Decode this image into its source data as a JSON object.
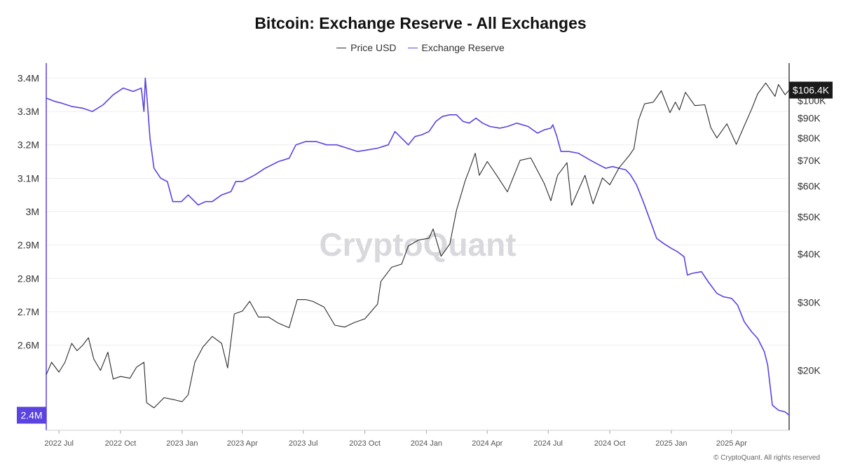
{
  "chart_data": {
    "type": "line",
    "title": "Bitcoin: Exchange Reserve - All Exchanges",
    "legend": {
      "placement": "top-center",
      "entries": [
        "Price USD",
        "Exchange Reserve"
      ]
    },
    "colors": {
      "price": "#2b2b2b",
      "reserve": "#5b43e0",
      "grid": "#eeeeee",
      "axis": "#444444"
    },
    "x_axis": {
      "range": [
        "2022-06-12",
        "2025-06-26"
      ],
      "ticks": [
        {
          "date": "2022-07-01",
          "label": "2022 Jul"
        },
        {
          "date": "2022-10-01",
          "label": "2022 Oct"
        },
        {
          "date": "2023-01-01",
          "label": "2023 Jan"
        },
        {
          "date": "2023-04-01",
          "label": "2023 Apr"
        },
        {
          "date": "2023-07-01",
          "label": "2023 Jul"
        },
        {
          "date": "2023-10-01",
          "label": "2023 Oct"
        },
        {
          "date": "2024-01-01",
          "label": "2024 Jan"
        },
        {
          "date": "2024-04-01",
          "label": "2024 Apr"
        },
        {
          "date": "2024-07-01",
          "label": "2024 Jul"
        },
        {
          "date": "2024-10-01",
          "label": "2024 Oct"
        },
        {
          "date": "2025-01-01",
          "label": "2025 Jan"
        },
        {
          "date": "2025-04-01",
          "label": "2025 Apr"
        }
      ]
    },
    "y_left": {
      "name": "Exchange Reserve",
      "range": [
        2.345,
        3.445
      ],
      "ticks": [
        {
          "value": 3.4,
          "label": "3.4M"
        },
        {
          "value": 3.3,
          "label": "3.3M"
        },
        {
          "value": 3.2,
          "label": "3.2M"
        },
        {
          "value": 3.1,
          "label": "3.1M"
        },
        {
          "value": 3.0,
          "label": "3M"
        },
        {
          "value": 2.9,
          "label": "2.9M"
        },
        {
          "value": 2.8,
          "label": "2.8M"
        },
        {
          "value": 2.7,
          "label": "2.7M"
        },
        {
          "value": 2.6,
          "label": "2.6M"
        }
      ],
      "current_badge": "2.4M"
    },
    "y_right": {
      "name": "Price USD",
      "scale": "log",
      "range": [
        14000,
        125000
      ],
      "ticks": [
        {
          "value": 20000,
          "label": "$20K"
        },
        {
          "value": 30000,
          "label": "$30K"
        },
        {
          "value": 40000,
          "label": "$40K"
        },
        {
          "value": 50000,
          "label": "$50K"
        },
        {
          "value": 60000,
          "label": "$60K"
        },
        {
          "value": 70000,
          "label": "$70K"
        },
        {
          "value": 80000,
          "label": "$80K"
        },
        {
          "value": 90000,
          "label": "$90K"
        },
        {
          "value": 100000,
          "label": "$100K"
        }
      ],
      "current_badge": "$106.4K"
    },
    "grid": true,
    "watermark": "CryptoQuant",
    "copyright": "© CryptoQuant. All rights reserved",
    "series": [
      {
        "name": "Exchange Reserve",
        "unit": "M BTC",
        "points": [
          [
            "2022-06-12",
            3.34
          ],
          [
            "2022-06-25",
            3.33
          ],
          [
            "2022-07-05",
            3.325
          ],
          [
            "2022-07-20",
            3.315
          ],
          [
            "2022-08-05",
            3.31
          ],
          [
            "2022-08-20",
            3.3
          ],
          [
            "2022-09-05",
            3.32
          ],
          [
            "2022-09-20",
            3.35
          ],
          [
            "2022-10-05",
            3.37
          ],
          [
            "2022-10-20",
            3.36
          ],
          [
            "2022-11-01",
            3.37
          ],
          [
            "2022-11-05",
            3.3
          ],
          [
            "2022-11-07",
            3.4
          ],
          [
            "2022-11-10",
            3.33
          ],
          [
            "2022-11-14",
            3.22
          ],
          [
            "2022-11-20",
            3.13
          ],
          [
            "2022-11-30",
            3.1
          ],
          [
            "2022-12-10",
            3.09
          ],
          [
            "2022-12-18",
            3.03
          ],
          [
            "2022-12-31",
            3.03
          ],
          [
            "2023-01-10",
            3.05
          ],
          [
            "2023-01-25",
            3.02
          ],
          [
            "2023-02-05",
            3.03
          ],
          [
            "2023-02-15",
            3.03
          ],
          [
            "2023-03-01",
            3.05
          ],
          [
            "2023-03-15",
            3.06
          ],
          [
            "2023-03-22",
            3.09
          ],
          [
            "2023-04-01",
            3.09
          ],
          [
            "2023-04-20",
            3.11
          ],
          [
            "2023-05-05",
            3.13
          ],
          [
            "2023-05-25",
            3.15
          ],
          [
            "2023-06-10",
            3.16
          ],
          [
            "2023-06-20",
            3.2
          ],
          [
            "2023-07-05",
            3.21
          ],
          [
            "2023-07-20",
            3.21
          ],
          [
            "2023-08-05",
            3.2
          ],
          [
            "2023-08-20",
            3.2
          ],
          [
            "2023-09-05",
            3.19
          ],
          [
            "2023-09-20",
            3.18
          ],
          [
            "2023-10-05",
            3.185
          ],
          [
            "2023-10-20",
            3.19
          ],
          [
            "2023-11-05",
            3.2
          ],
          [
            "2023-11-15",
            3.24
          ],
          [
            "2023-11-25",
            3.22
          ],
          [
            "2023-12-05",
            3.2
          ],
          [
            "2023-12-15",
            3.225
          ],
          [
            "2023-12-25",
            3.23
          ],
          [
            "2024-01-05",
            3.24
          ],
          [
            "2024-01-15",
            3.27
          ],
          [
            "2024-01-25",
            3.285
          ],
          [
            "2024-02-05",
            3.29
          ],
          [
            "2024-02-15",
            3.29
          ],
          [
            "2024-02-25",
            3.27
          ],
          [
            "2024-03-05",
            3.265
          ],
          [
            "2024-03-15",
            3.28
          ],
          [
            "2024-03-25",
            3.265
          ],
          [
            "2024-04-05",
            3.255
          ],
          [
            "2024-04-20",
            3.25
          ],
          [
            "2024-05-01",
            3.255
          ],
          [
            "2024-05-15",
            3.265
          ],
          [
            "2024-06-01",
            3.255
          ],
          [
            "2024-06-15",
            3.235
          ],
          [
            "2024-06-25",
            3.245
          ],
          [
            "2024-07-05",
            3.25
          ],
          [
            "2024-07-08",
            3.26
          ],
          [
            "2024-07-14",
            3.225
          ],
          [
            "2024-07-20",
            3.18
          ],
          [
            "2024-08-01",
            3.18
          ],
          [
            "2024-08-15",
            3.175
          ],
          [
            "2024-09-01",
            3.155
          ],
          [
            "2024-09-15",
            3.14
          ],
          [
            "2024-09-25",
            3.13
          ],
          [
            "2024-10-05",
            3.135
          ],
          [
            "2024-10-15",
            3.13
          ],
          [
            "2024-10-25",
            3.125
          ],
          [
            "2024-11-01",
            3.11
          ],
          [
            "2024-11-10",
            3.08
          ],
          [
            "2024-11-20",
            3.03
          ],
          [
            "2024-12-01",
            2.97
          ],
          [
            "2024-12-10",
            2.92
          ],
          [
            "2024-12-20",
            2.905
          ],
          [
            "2025-01-01",
            2.89
          ],
          [
            "2025-01-10",
            2.88
          ],
          [
            "2025-01-20",
            2.865
          ],
          [
            "2025-01-25",
            2.81
          ],
          [
            "2025-02-01",
            2.815
          ],
          [
            "2025-02-15",
            2.82
          ],
          [
            "2025-02-25",
            2.79
          ],
          [
            "2025-03-10",
            2.755
          ],
          [
            "2025-03-20",
            2.745
          ],
          [
            "2025-04-01",
            2.74
          ],
          [
            "2025-04-10",
            2.72
          ],
          [
            "2025-04-20",
            2.67
          ],
          [
            "2025-05-01",
            2.64
          ],
          [
            "2025-05-10",
            2.62
          ],
          [
            "2025-05-20",
            2.58
          ],
          [
            "2025-05-25",
            2.54
          ],
          [
            "2025-06-01",
            2.42
          ],
          [
            "2025-06-10",
            2.405
          ],
          [
            "2025-06-20",
            2.4
          ],
          [
            "2025-06-26",
            2.39
          ]
        ]
      },
      {
        "name": "Price USD",
        "unit": "USD",
        "points": [
          [
            "2022-06-12",
            19500
          ],
          [
            "2022-06-20",
            21000
          ],
          [
            "2022-07-01",
            19800
          ],
          [
            "2022-07-10",
            21000
          ],
          [
            "2022-07-20",
            23500
          ],
          [
            "2022-07-28",
            22500
          ],
          [
            "2022-08-05",
            23200
          ],
          [
            "2022-08-14",
            24300
          ],
          [
            "2022-08-22",
            21400
          ],
          [
            "2022-09-01",
            20000
          ],
          [
            "2022-09-12",
            22300
          ],
          [
            "2022-09-20",
            19000
          ],
          [
            "2022-10-01",
            19300
          ],
          [
            "2022-10-15",
            19100
          ],
          [
            "2022-10-25",
            20400
          ],
          [
            "2022-11-05",
            21000
          ],
          [
            "2022-11-09",
            16500
          ],
          [
            "2022-11-20",
            16000
          ],
          [
            "2022-12-05",
            17000
          ],
          [
            "2022-12-20",
            16800
          ],
          [
            "2023-01-01",
            16600
          ],
          [
            "2023-01-10",
            17300
          ],
          [
            "2023-01-20",
            21000
          ],
          [
            "2023-02-01",
            23000
          ],
          [
            "2023-02-15",
            24500
          ],
          [
            "2023-03-01",
            23500
          ],
          [
            "2023-03-10",
            20300
          ],
          [
            "2023-03-20",
            28000
          ],
          [
            "2023-04-01",
            28500
          ],
          [
            "2023-04-12",
            30200
          ],
          [
            "2023-04-25",
            27500
          ],
          [
            "2023-05-10",
            27500
          ],
          [
            "2023-05-25",
            26500
          ],
          [
            "2023-06-10",
            25800
          ],
          [
            "2023-06-22",
            30500
          ],
          [
            "2023-07-05",
            30500
          ],
          [
            "2023-07-15",
            30200
          ],
          [
            "2023-08-01",
            29200
          ],
          [
            "2023-08-17",
            26200
          ],
          [
            "2023-09-01",
            25900
          ],
          [
            "2023-09-15",
            26600
          ],
          [
            "2023-10-01",
            27200
          ],
          [
            "2023-10-20",
            29700
          ],
          [
            "2023-10-25",
            34000
          ],
          [
            "2023-11-10",
            37000
          ],
          [
            "2023-11-25",
            37700
          ],
          [
            "2023-12-05",
            42000
          ],
          [
            "2023-12-20",
            43500
          ],
          [
            "2024-01-05",
            44000
          ],
          [
            "2024-01-11",
            46500
          ],
          [
            "2024-01-23",
            39500
          ],
          [
            "2024-02-05",
            42500
          ],
          [
            "2024-02-15",
            52000
          ],
          [
            "2024-02-28",
            62000
          ],
          [
            "2024-03-05",
            66000
          ],
          [
            "2024-03-14",
            73000
          ],
          [
            "2024-03-20",
            64000
          ],
          [
            "2024-04-01",
            69500
          ],
          [
            "2024-04-15",
            64000
          ],
          [
            "2024-05-01",
            58000
          ],
          [
            "2024-05-20",
            70000
          ],
          [
            "2024-06-05",
            71000
          ],
          [
            "2024-06-25",
            61000
          ],
          [
            "2024-07-05",
            55000
          ],
          [
            "2024-07-15",
            64000
          ],
          [
            "2024-07-29",
            69000
          ],
          [
            "2024-08-05",
            53500
          ],
          [
            "2024-08-25",
            64000
          ],
          [
            "2024-09-06",
            54000
          ],
          [
            "2024-09-20",
            63000
          ],
          [
            "2024-10-01",
            60500
          ],
          [
            "2024-10-15",
            67000
          ],
          [
            "2024-10-30",
            72000
          ],
          [
            "2024-11-06",
            75000
          ],
          [
            "2024-11-13",
            89000
          ],
          [
            "2024-11-22",
            98000
          ],
          [
            "2024-12-05",
            99000
          ],
          [
            "2024-12-17",
            106000
          ],
          [
            "2024-12-30",
            93000
          ],
          [
            "2025-01-07",
            99000
          ],
          [
            "2025-01-13",
            94500
          ],
          [
            "2025-01-22",
            105000
          ],
          [
            "2025-02-05",
            97000
          ],
          [
            "2025-02-20",
            97500
          ],
          [
            "2025-03-01",
            85000
          ],
          [
            "2025-03-10",
            80000
          ],
          [
            "2025-03-25",
            87000
          ],
          [
            "2025-04-08",
            77000
          ],
          [
            "2025-04-20",
            86000
          ],
          [
            "2025-05-01",
            95000
          ],
          [
            "2025-05-10",
            104000
          ],
          [
            "2025-05-22",
            111000
          ],
          [
            "2025-06-05",
            102500
          ],
          [
            "2025-06-10",
            110000
          ],
          [
            "2025-06-20",
            103500
          ],
          [
            "2025-06-26",
            106400
          ]
        ]
      }
    ]
  }
}
